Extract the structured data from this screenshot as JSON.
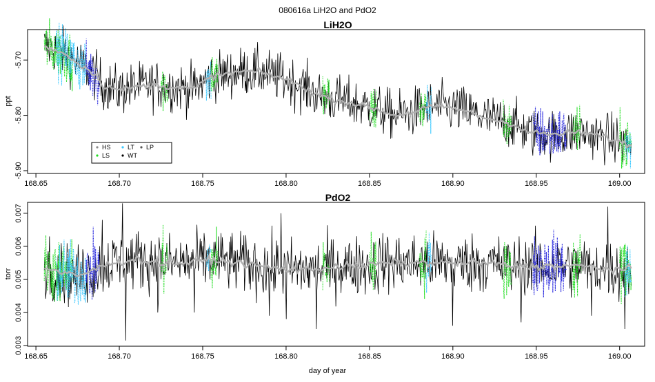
{
  "figure": {
    "title": "080616a   LiH2O and PdO2"
  },
  "chart_data": [
    {
      "type": "line",
      "title": "LiH2O",
      "xlabel": "",
      "ylabel": "ppt",
      "xlim": [
        168.645,
        169.015
      ],
      "ylim": [
        -5.905,
        -5.645
      ],
      "x_ticks": [
        168.65,
        168.7,
        168.75,
        168.8,
        168.85,
        168.9,
        168.95,
        169.0
      ],
      "x_tick_labels": [
        "168.65",
        "168.70",
        "168.75",
        "168.80",
        "168.85",
        "168.90",
        "168.95",
        "169.00"
      ],
      "y_ticks": [
        -5.9,
        -5.8,
        -5.7
      ],
      "y_tick_labels": [
        "-5.90",
        "-5.80",
        "-5.70"
      ],
      "x_range": [
        168.655,
        169.007
      ],
      "trend_x": [
        168.655,
        168.665,
        168.675,
        168.685,
        168.69,
        168.7,
        168.71,
        168.72,
        168.73,
        168.745,
        168.755,
        168.765,
        168.775,
        168.785,
        168.8,
        168.81,
        168.82,
        168.835,
        168.85,
        168.865,
        168.875,
        168.885,
        168.895,
        168.905,
        168.92,
        168.935,
        168.945,
        168.96,
        168.975,
        168.99,
        169.007
      ],
      "trend_y": [
        -5.675,
        -5.685,
        -5.705,
        -5.725,
        -5.745,
        -5.755,
        -5.748,
        -5.745,
        -5.748,
        -5.752,
        -5.73,
        -5.725,
        -5.72,
        -5.722,
        -5.735,
        -5.748,
        -5.765,
        -5.775,
        -5.785,
        -5.8,
        -5.795,
        -5.785,
        -5.785,
        -5.79,
        -5.805,
        -5.815,
        -5.83,
        -5.835,
        -5.83,
        -5.838,
        -5.855
      ],
      "noise": 0.022,
      "legend": {
        "position": "bottom-left",
        "entries": [
          {
            "label": "HS",
            "color": "#888888"
          },
          {
            "label": "LT",
            "color": "#39c8ff"
          },
          {
            "label": "LP",
            "color": "#555555"
          },
          {
            "label": "LS",
            "color": "#22dd22"
          },
          {
            "label": "WT",
            "color": "#000000"
          }
        ]
      },
      "segments": [
        {
          "color": "#22dd22",
          "x0": 168.655,
          "x1": 168.672
        },
        {
          "color": "#39c8ff",
          "x0": 168.662,
          "x1": 168.68
        },
        {
          "color": "#2222dd",
          "x0": 168.68,
          "x1": 168.688
        },
        {
          "color": "#22dd22",
          "x0": 168.725,
          "x1": 168.729
        },
        {
          "color": "#39c8ff",
          "x0": 168.752,
          "x1": 168.755
        },
        {
          "color": "#22dd22",
          "x0": 168.755,
          "x1": 168.759
        },
        {
          "color": "#22dd22",
          "x0": 168.822,
          "x1": 168.826
        },
        {
          "color": "#22dd22",
          "x0": 168.85,
          "x1": 168.854
        },
        {
          "color": "#22dd22",
          "x0": 168.88,
          "x1": 168.884
        },
        {
          "color": "#39c8ff",
          "x0": 168.884,
          "x1": 168.887
        },
        {
          "color": "#22dd22",
          "x0": 168.93,
          "x1": 168.935
        },
        {
          "color": "#2222dd",
          "x0": 168.948,
          "x1": 168.968
        },
        {
          "color": "#22dd22",
          "x0": 168.972,
          "x1": 168.977
        },
        {
          "color": "#22dd22",
          "x0": 169.0,
          "x1": 169.007
        },
        {
          "color": "#39c8ff",
          "x0": 169.003,
          "x1": 169.007
        }
      ]
    },
    {
      "type": "line",
      "title": "PdO2",
      "xlabel": "day of year",
      "ylabel": "torr",
      "xlim": [
        168.645,
        169.015
      ],
      "ylim": [
        0.00298,
        0.00733
      ],
      "x_ticks": [
        168.65,
        168.7,
        168.75,
        168.8,
        168.85,
        168.9,
        168.95,
        169.0
      ],
      "x_tick_labels": [
        "168.65",
        "168.70",
        "168.75",
        "168.80",
        "168.85",
        "168.90",
        "168.95",
        "169.00"
      ],
      "y_ticks": [
        0.003,
        0.004,
        0.005,
        0.006,
        0.007
      ],
      "y_tick_labels": [
        "0.003",
        "0.004",
        "0.005",
        "0.006",
        "0.007"
      ],
      "x_range": [
        168.655,
        169.007
      ],
      "trend_x": [
        168.655,
        168.665,
        168.675,
        168.685,
        168.695,
        168.71,
        168.725,
        168.74,
        168.755,
        168.77,
        168.785,
        168.8,
        168.815,
        168.83,
        168.845,
        168.86,
        168.875,
        168.89,
        168.905,
        168.92,
        168.935,
        168.95,
        168.965,
        168.98,
        168.995,
        169.007
      ],
      "trend_y": [
        0.00535,
        0.0052,
        0.0051,
        0.0053,
        0.0055,
        0.0056,
        0.0055,
        0.0055,
        0.0056,
        0.0055,
        0.0054,
        0.0053,
        0.0053,
        0.0054,
        0.0054,
        0.0055,
        0.0055,
        0.0055,
        0.0055,
        0.0055,
        0.0054,
        0.0054,
        0.0054,
        0.0054,
        0.0053,
        0.0053
      ],
      "noise": 0.00045,
      "spikes": [
        {
          "x": 168.658,
          "y": 0.0063
        },
        {
          "x": 168.681,
          "y": 0.0043
        },
        {
          "x": 168.69,
          "y": 0.0068
        },
        {
          "x": 168.702,
          "y": 0.0073
        },
        {
          "x": 168.704,
          "y": 0.00315
        },
        {
          "x": 168.723,
          "y": 0.004
        },
        {
          "x": 168.745,
          "y": 0.004
        },
        {
          "x": 168.761,
          "y": 0.0064
        },
        {
          "x": 168.79,
          "y": 0.0039
        },
        {
          "x": 168.797,
          "y": 0.007
        },
        {
          "x": 168.8,
          "y": 0.0038
        },
        {
          "x": 168.818,
          "y": 0.0035
        },
        {
          "x": 168.838,
          "y": 0.0061
        },
        {
          "x": 168.858,
          "y": 0.0064
        },
        {
          "x": 168.9,
          "y": 0.0036
        },
        {
          "x": 168.941,
          "y": 0.0037
        },
        {
          "x": 168.983,
          "y": 0.0039
        },
        {
          "x": 168.993,
          "y": 0.0072
        },
        {
          "x": 169.003,
          "y": 0.0035
        }
      ],
      "segments": [
        {
          "color": "#22dd22",
          "x0": 168.655,
          "x1": 168.672
        },
        {
          "color": "#39c8ff",
          "x0": 168.662,
          "x1": 168.68
        },
        {
          "color": "#2222dd",
          "x0": 168.68,
          "x1": 168.688
        },
        {
          "color": "#22dd22",
          "x0": 168.725,
          "x1": 168.729
        },
        {
          "color": "#39c8ff",
          "x0": 168.752,
          "x1": 168.755
        },
        {
          "color": "#22dd22",
          "x0": 168.755,
          "x1": 168.759
        },
        {
          "color": "#22dd22",
          "x0": 168.822,
          "x1": 168.826
        },
        {
          "color": "#22dd22",
          "x0": 168.85,
          "x1": 168.854
        },
        {
          "color": "#22dd22",
          "x0": 168.88,
          "x1": 168.884
        },
        {
          "color": "#39c8ff",
          "x0": 168.884,
          "x1": 168.887
        },
        {
          "color": "#22dd22",
          "x0": 168.93,
          "x1": 168.935
        },
        {
          "color": "#2222dd",
          "x0": 168.948,
          "x1": 168.968
        },
        {
          "color": "#22dd22",
          "x0": 168.972,
          "x1": 168.977
        },
        {
          "color": "#22dd22",
          "x0": 169.0,
          "x1": 169.007
        },
        {
          "color": "#39c8ff",
          "x0": 169.003,
          "x1": 169.007
        }
      ]
    }
  ]
}
